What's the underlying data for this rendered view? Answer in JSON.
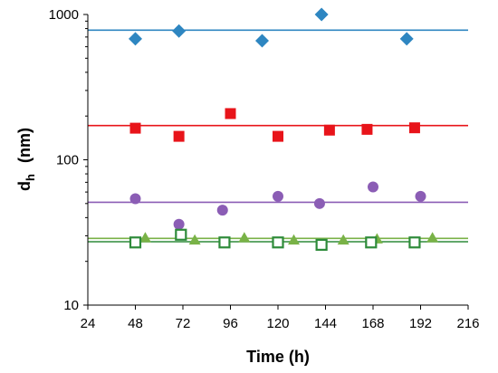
{
  "chart_data": {
    "type": "scatter",
    "xlabel": "Time (h)",
    "ylabel_main": "d",
    "ylabel_sub": "h",
    "ylabel_unit": "(nm)",
    "xlim": [
      24,
      216
    ],
    "ylim": [
      10,
      1000
    ],
    "yscale": "log",
    "x_ticks": [
      24,
      48,
      72,
      96,
      120,
      144,
      168,
      192,
      216
    ],
    "x_tick_labels": [
      "24",
      "48",
      "72",
      "96",
      "120",
      "144",
      "168",
      "192",
      "216"
    ],
    "y_ticks": [
      10,
      100,
      1000
    ],
    "y_tick_labels": [
      "10",
      "100",
      "1000"
    ],
    "grid": false,
    "series": [
      {
        "marker": "diamond",
        "color": "#2e86c1",
        "x": [
          48,
          70,
          112,
          142,
          185
        ],
        "y": [
          680,
          770,
          660,
          1000,
          680
        ],
        "fit": 780
      },
      {
        "marker": "square",
        "color": "#e8141a",
        "x": [
          48,
          70,
          96,
          120,
          146,
          165,
          189
        ],
        "y": [
          165,
          145,
          208,
          145,
          160,
          162,
          166
        ],
        "fit": 172
      },
      {
        "marker": "circle",
        "color": "#8b5db5",
        "x": [
          48,
          70,
          92,
          120,
          141,
          168,
          192
        ],
        "y": [
          54,
          36,
          45,
          56,
          50,
          65,
          56
        ],
        "fit": 51
      },
      {
        "marker": "triangle",
        "color": "#79b247",
        "x": [
          53,
          78,
          103,
          128,
          153,
          170,
          198
        ],
        "y": [
          29,
          28,
          29,
          28,
          28,
          28.5,
          29
        ],
        "fit": 28.8
      },
      {
        "marker": "square-open",
        "color": "#2e8b3a",
        "x": [
          48,
          71,
          93,
          120,
          142,
          167,
          189
        ],
        "y": [
          27,
          30.5,
          27,
          27,
          26,
          27,
          27
        ],
        "fit": 27.3
      }
    ]
  }
}
